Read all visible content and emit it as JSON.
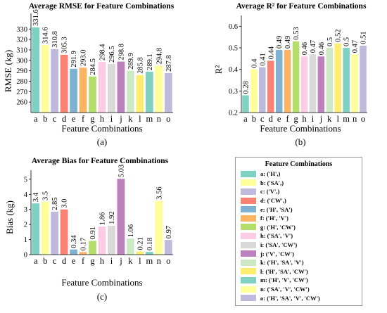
{
  "colors": [
    "#7fd1c1",
    "#ffff99",
    "#bebadb",
    "#f98275",
    "#7fb1d3",
    "#fbb462",
    "#b3de69",
    "#fccce5",
    "#d9d9d9",
    "#bb80bd",
    "#cde8c5",
    "#ffed6f",
    "#7fd1c1",
    "#ffff99",
    "#bebadb"
  ],
  "legend": {
    "title": "Feature Combinations",
    "items": [
      "a: ('H',)",
      "b: ('SA',)",
      "c: ('V',)",
      "d: ('CW',)",
      "e: ('H', 'SA')",
      "f: ('H', 'V')",
      "g: ('H', 'CW')",
      "h: ('SA', 'V')",
      "i: ('SA', 'CW')",
      "j: ('V', 'CW')",
      "k: ('H', 'SA', 'V')",
      "l: ('H', 'SA', 'CW')",
      "m: ('H', 'V', 'CW')",
      "n: ('SA', 'V', 'CW')",
      "o: ('H', 'SA', 'V', 'CW')"
    ]
  },
  "chart_data": [
    {
      "type": "bar",
      "title": "Average RMSE for Feature Combinations",
      "xlabel": "Feature Combinations",
      "ylabel": "RMSE (kg)",
      "panel_label": "(a)",
      "categories": [
        "a",
        "b",
        "c",
        "d",
        "e",
        "f",
        "g",
        "h",
        "i",
        "j",
        "k",
        "l",
        "m",
        "n",
        "o"
      ],
      "values": [
        331.6,
        314.6,
        310.8,
        305.3,
        291.9,
        293.0,
        284.5,
        298.4,
        296.5,
        298.8,
        289.9,
        285.8,
        289.1,
        294.8,
        287.8
      ],
      "value_labels": [
        "331.6",
        "314.6",
        "310.8",
        "305.3",
        "291.9",
        "293.0",
        "284.5",
        "298.4",
        "296.5",
        "298.8",
        "289.9",
        "285.8",
        "289.1",
        "294.8",
        "287.8"
      ],
      "ylim": [
        250,
        345
      ],
      "yticks": [
        260,
        270,
        280,
        290,
        300,
        310,
        320,
        330
      ],
      "grid": false
    },
    {
      "type": "bar",
      "title": "Average R² for Feature Combinations",
      "xlabel": "Feature Combinations",
      "ylabel": "R²",
      "panel_label": "(b)",
      "categories": [
        "a",
        "b",
        "c",
        "d",
        "e",
        "f",
        "g",
        "h",
        "i",
        "j",
        "k",
        "l",
        "m",
        "n",
        "o"
      ],
      "values": [
        0.28,
        0.4,
        0.41,
        0.44,
        0.49,
        0.49,
        0.53,
        0.46,
        0.47,
        0.46,
        0.5,
        0.52,
        0.5,
        0.47,
        0.51
      ],
      "value_labels": [
        "0.28",
        "0.4",
        "0.41",
        "0.44",
        "0.49",
        "0.49",
        "0.53",
        "0.46",
        "0.47",
        "0.46",
        "0.5",
        "0.52",
        "0.5",
        "0.47",
        "0.51"
      ],
      "ylim": [
        0.2,
        0.65
      ],
      "yticks": [
        0.2,
        0.3,
        0.4,
        0.5,
        0.6
      ],
      "grid": false
    },
    {
      "type": "bar",
      "title": "Average Bias for Feature Combinations",
      "xlabel": "Feature Combinations",
      "ylabel": "Bias (kg)",
      "panel_label": "(c)",
      "categories": [
        "a",
        "b",
        "c",
        "d",
        "e",
        "f",
        "g",
        "h",
        "i",
        "j",
        "k",
        "l",
        "m",
        "n",
        "o"
      ],
      "values": [
        3.4,
        3.5,
        2.85,
        3.0,
        0.34,
        0.17,
        0.91,
        1.86,
        1.92,
        5.03,
        1.06,
        0.21,
        0.18,
        3.56,
        0.97
      ],
      "value_labels": [
        "3.4",
        "3.5",
        "2.85",
        "3.0",
        "0.34",
        "0.17",
        "0.91",
        "1.86",
        "1.92",
        "5.03",
        "1.06",
        "0.21",
        "0.18",
        "3.56",
        "0.97"
      ],
      "ylim": [
        0,
        5.6
      ],
      "yticks": [
        0,
        1,
        2,
        3,
        4,
        5
      ],
      "grid": false
    }
  ]
}
